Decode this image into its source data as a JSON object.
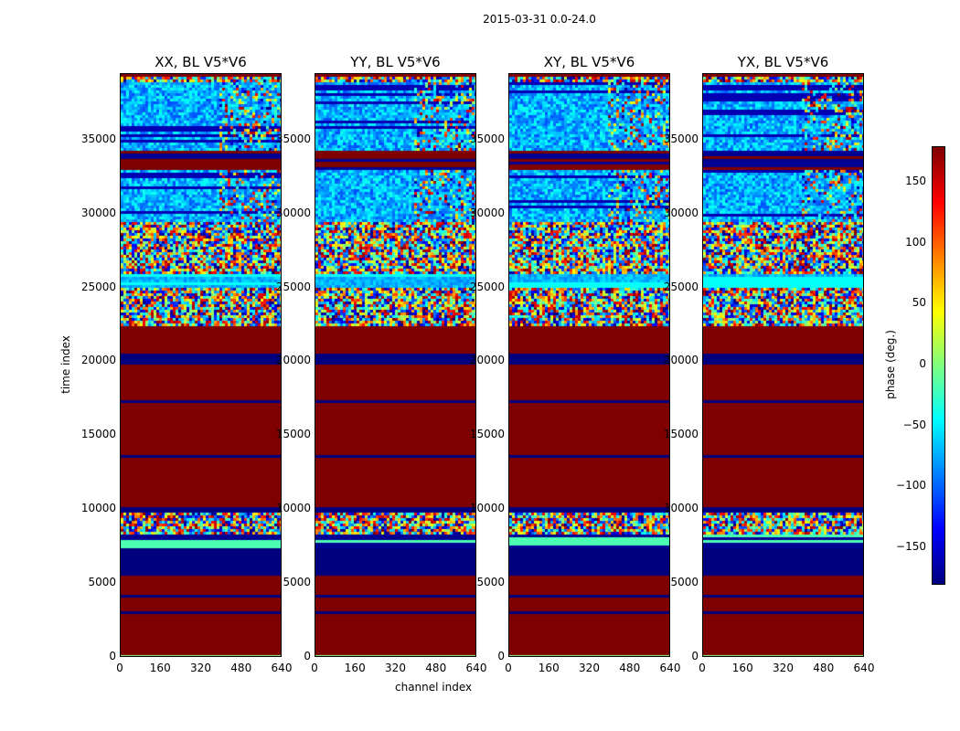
{
  "chart_data": {
    "type": "heatmap",
    "title": "2015-03-31 0.0-24.0",
    "xlabel": "channel index",
    "ylabel": "time index",
    "xlim": [
      0,
      640
    ],
    "ylim": [
      0,
      39500
    ],
    "xticks": [
      "0",
      "160",
      "320",
      "480",
      "640"
    ],
    "yticks": [
      "0",
      "5000",
      "10000",
      "15000",
      "20000",
      "25000",
      "30000",
      "35000"
    ],
    "panels": [
      {
        "title": "XX, BL V5*V6"
      },
      {
        "title": "YY, BL V5*V6"
      },
      {
        "title": "XY, BL V5*V6"
      },
      {
        "title": "YX, BL V5*V6"
      }
    ],
    "segments": [
      [
        0,
        200,
        "green"
      ],
      [
        200,
        5600,
        "red"
      ],
      [
        5600,
        7400,
        "navy"
      ],
      [
        7400,
        8300,
        "navy-lines"
      ],
      [
        8300,
        9800,
        "noise"
      ],
      [
        9800,
        10200,
        "navy"
      ],
      [
        10200,
        19900,
        "red"
      ],
      [
        19900,
        20600,
        "navy"
      ],
      [
        20600,
        22400,
        "red"
      ],
      [
        22400,
        25000,
        "noise"
      ],
      [
        25000,
        26000,
        "cyan"
      ],
      [
        26000,
        29500,
        "noise"
      ],
      [
        29500,
        33000,
        "blue-noise"
      ],
      [
        33000,
        34300,
        "red-navy"
      ],
      [
        34300,
        39000,
        "blue-noise"
      ],
      [
        39000,
        39500,
        "noise"
      ]
    ],
    "thin_navy_lines": [
      700,
      3000,
      4200,
      13700,
      17400
    ],
    "colorbar": {
      "label": "phase (deg.)",
      "range": [
        -180,
        180
      ],
      "ticks": [
        "150",
        "100",
        "50",
        "0",
        "−50",
        "−100",
        "−150"
      ],
      "tick_values": [
        150,
        100,
        50,
        0,
        -50,
        -100,
        -150
      ],
      "colormap": "jet"
    }
  }
}
